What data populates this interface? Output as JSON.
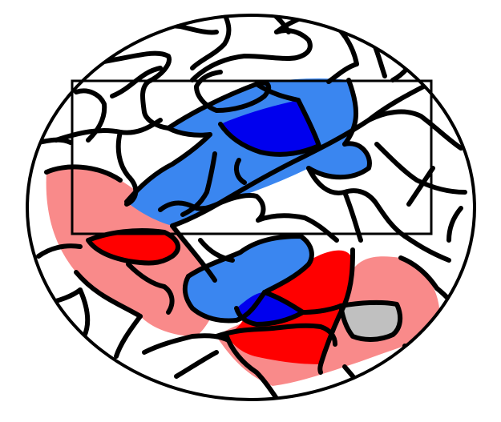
{
  "colors": {
    "background": "#ffffff",
    "outline": "#000000",
    "light_red": "#f98a8a",
    "red": "#ff0000",
    "light_blue": "#3a86f0",
    "blue": "#0000ee",
    "gray": "#c0c0c0"
  },
  "regions": [
    {
      "name": "light-red-west",
      "fill": "light_red"
    },
    {
      "name": "light-red-east",
      "fill": "light_red"
    },
    {
      "name": "red-west",
      "fill": "red"
    },
    {
      "name": "red-east",
      "fill": "red"
    },
    {
      "name": "gray-south",
      "fill": "gray"
    },
    {
      "name": "light-blue-north",
      "fill": "light_blue"
    },
    {
      "name": "light-blue-south",
      "fill": "light_blue"
    },
    {
      "name": "blue-north",
      "fill": "blue"
    },
    {
      "name": "blue-south",
      "fill": "blue"
    }
  ]
}
